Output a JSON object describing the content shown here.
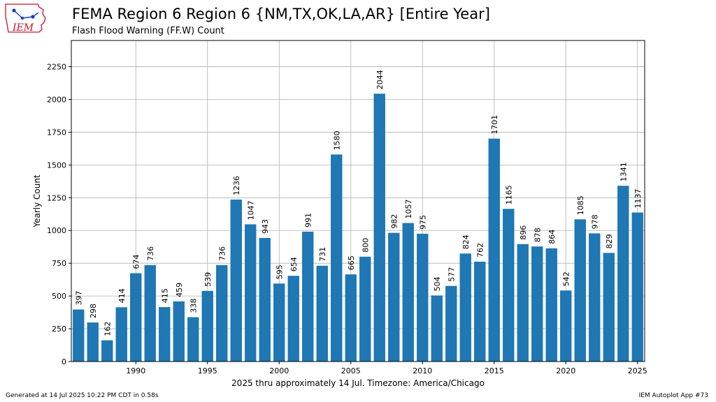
{
  "header": {
    "title": "FEMA Region 6 Region 6 {NM,TX,OK,LA,AR} [Entire Year]",
    "subtitle": "Flash Flood Warning (FF.W) Count",
    "logo_text": "IEM"
  },
  "footer": {
    "generated": "Generated at 14 Jul 2025 10:22 PM CDT in 0.58s",
    "app": "IEM Autoplot App #73"
  },
  "colors": {
    "bar": "#1f77b4",
    "grid": "#b0b0b0",
    "logo_red": "#c8102e",
    "logo_blue": "#1a3cc8"
  },
  "chart_data": {
    "type": "bar",
    "xlabel": "2025 thru approximately 14 Jul. Timezone: America/Chicago",
    "ylabel": "Yearly Count",
    "x": [
      1986,
      1987,
      1988,
      1989,
      1990,
      1991,
      1992,
      1993,
      1994,
      1995,
      1996,
      1997,
      1998,
      1999,
      2000,
      2001,
      2002,
      2003,
      2004,
      2005,
      2006,
      2007,
      2008,
      2009,
      2010,
      2011,
      2012,
      2013,
      2014,
      2015,
      2016,
      2017,
      2018,
      2019,
      2020,
      2021,
      2022,
      2023,
      2024,
      2025
    ],
    "values": [
      397,
      298,
      162,
      414,
      674,
      736,
      415,
      459,
      338,
      539,
      736,
      1236,
      1047,
      943,
      595,
      654,
      991,
      731,
      1580,
      665,
      800,
      2044,
      982,
      1057,
      975,
      504,
      577,
      824,
      762,
      1701,
      1165,
      896,
      878,
      864,
      542,
      1085,
      978,
      829,
      1341,
      1137
    ],
    "x_ticks": [
      1990,
      1995,
      2000,
      2005,
      2010,
      2015,
      2020,
      2025
    ],
    "y_ticks": [
      0,
      250,
      500,
      750,
      1000,
      1250,
      1500,
      1750,
      2000,
      2250
    ],
    "xlim": [
      1985.5,
      2025.5
    ],
    "ylim": [
      0,
      2450
    ],
    "grid": true
  }
}
